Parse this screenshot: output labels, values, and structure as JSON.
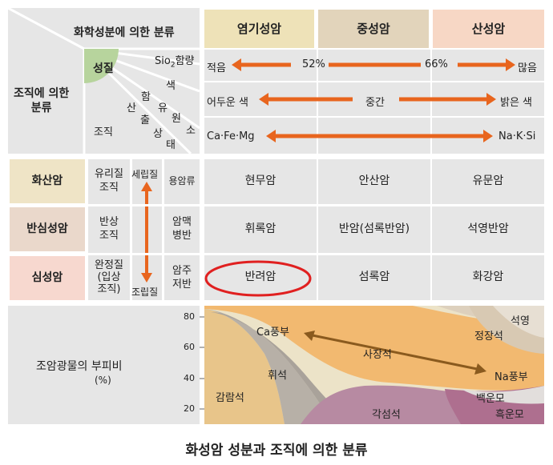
{
  "caption": "화성암 성분과 조직에 의한 분류",
  "header": {
    "chem_label": "화학성분에 의한 분류",
    "texture_label": "조직에 의한\n분류",
    "col1": "염기성암",
    "col2": "중성암",
    "col3": "산성암"
  },
  "property": {
    "title": "성질",
    "sio2": "Sio",
    "sio2_sub": "2",
    "sio2_suffix": "함량",
    "color": [
      "색"
    ],
    "minerals": [
      "산",
      "출",
      "상",
      "태"
    ],
    "element": [
      "유",
      "원",
      "소"
    ],
    "ham": "함",
    "texture": "조직"
  },
  "rows_arrows": [
    {
      "left": "적음",
      "mid1": "52%",
      "mid2": "66%",
      "right": "많음"
    },
    {
      "left": "어두운 색",
      "mid": "중간",
      "right": "밝은 색"
    },
    {
      "left": "Ca·Fe·Mg",
      "right": "Na·K·Si"
    }
  ],
  "rock_rows": [
    {
      "name": "화산암",
      "texture": "유리질\n조직",
      "occurrence": "용암류",
      "cols": [
        "현무암",
        "안산암",
        "유문암"
      ]
    },
    {
      "name": "반심성암",
      "texture": "반상\n조직",
      "occurrence": "암맥\n병반",
      "cols": [
        "휘록암",
        "반암(섬록반암)",
        "석영반암"
      ]
    },
    {
      "name": "심성암",
      "texture": "완정질\n(입상\n조직)",
      "occurrence": "암주\n저반",
      "cols": [
        "반려암",
        "섬록암",
        "화강암"
      ]
    }
  ],
  "grain_arrow": {
    "top": "세립질",
    "bottom": "조립질"
  },
  "bottom": {
    "label": "조암광물의 부피비",
    "unit": "(%)",
    "ticks": [
      "80",
      "60",
      "40",
      "20"
    ],
    "regions": {
      "ca_rich": "Ca풍부",
      "plagioclase": "사장석",
      "na_rich": "Na풍부",
      "quartz": "석영",
      "orthoclase": "정장석",
      "pyroxene": "휘석",
      "olivine": "감람석",
      "amphibole": "각섬석",
      "biotite": "흑운모",
      "muscovite": "백운모"
    }
  },
  "colors": {
    "grid_bg": "#e4e4e4",
    "mafic_header": "#eee2b8",
    "inter_header": "#e2d4bb",
    "felsic_header": "#f7d7c5",
    "volcanic": "#efe4c6",
    "hypabyssal": "#ead8cb",
    "plutonic": "#f7d8cf",
    "arrow": "#e8651e",
    "circle": "#e02020",
    "property_green": "#b7d49d"
  }
}
